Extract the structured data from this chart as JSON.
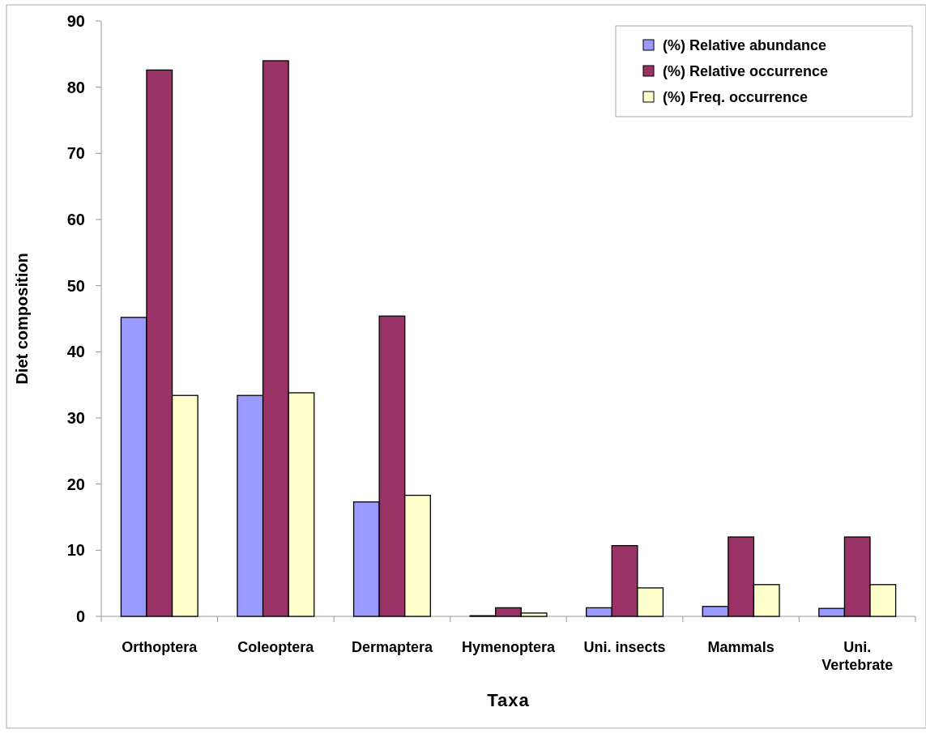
{
  "chart_data": {
    "type": "bar",
    "xlabel": "Taxa",
    "ylabel": "Diet composition",
    "categories": [
      "Orthoptera",
      "Coleoptera",
      "Dermaptera",
      "Hymenoptera",
      "Uni. insects",
      "Mammals",
      "Uni. Vertebrate"
    ],
    "series": [
      {
        "name": "(%) Relative abundance",
        "color": "#9999ff",
        "values": [
          45.2,
          33.4,
          17.3,
          0.1,
          1.3,
          1.5,
          1.2
        ]
      },
      {
        "name": "(%) Relative occurrence",
        "color": "#993366",
        "values": [
          82.6,
          84.0,
          45.4,
          1.3,
          10.7,
          12.0,
          12.0
        ]
      },
      {
        "name": "(%) Freq. occurrence",
        "color": "#ffffcc",
        "values": [
          33.4,
          33.8,
          18.3,
          0.5,
          4.3,
          4.8,
          4.8
        ]
      }
    ],
    "ylim": [
      0,
      90
    ],
    "yticks": [
      0,
      10,
      20,
      30,
      40,
      50,
      60,
      70,
      80,
      90
    ],
    "grid": false,
    "legend": "top right"
  }
}
